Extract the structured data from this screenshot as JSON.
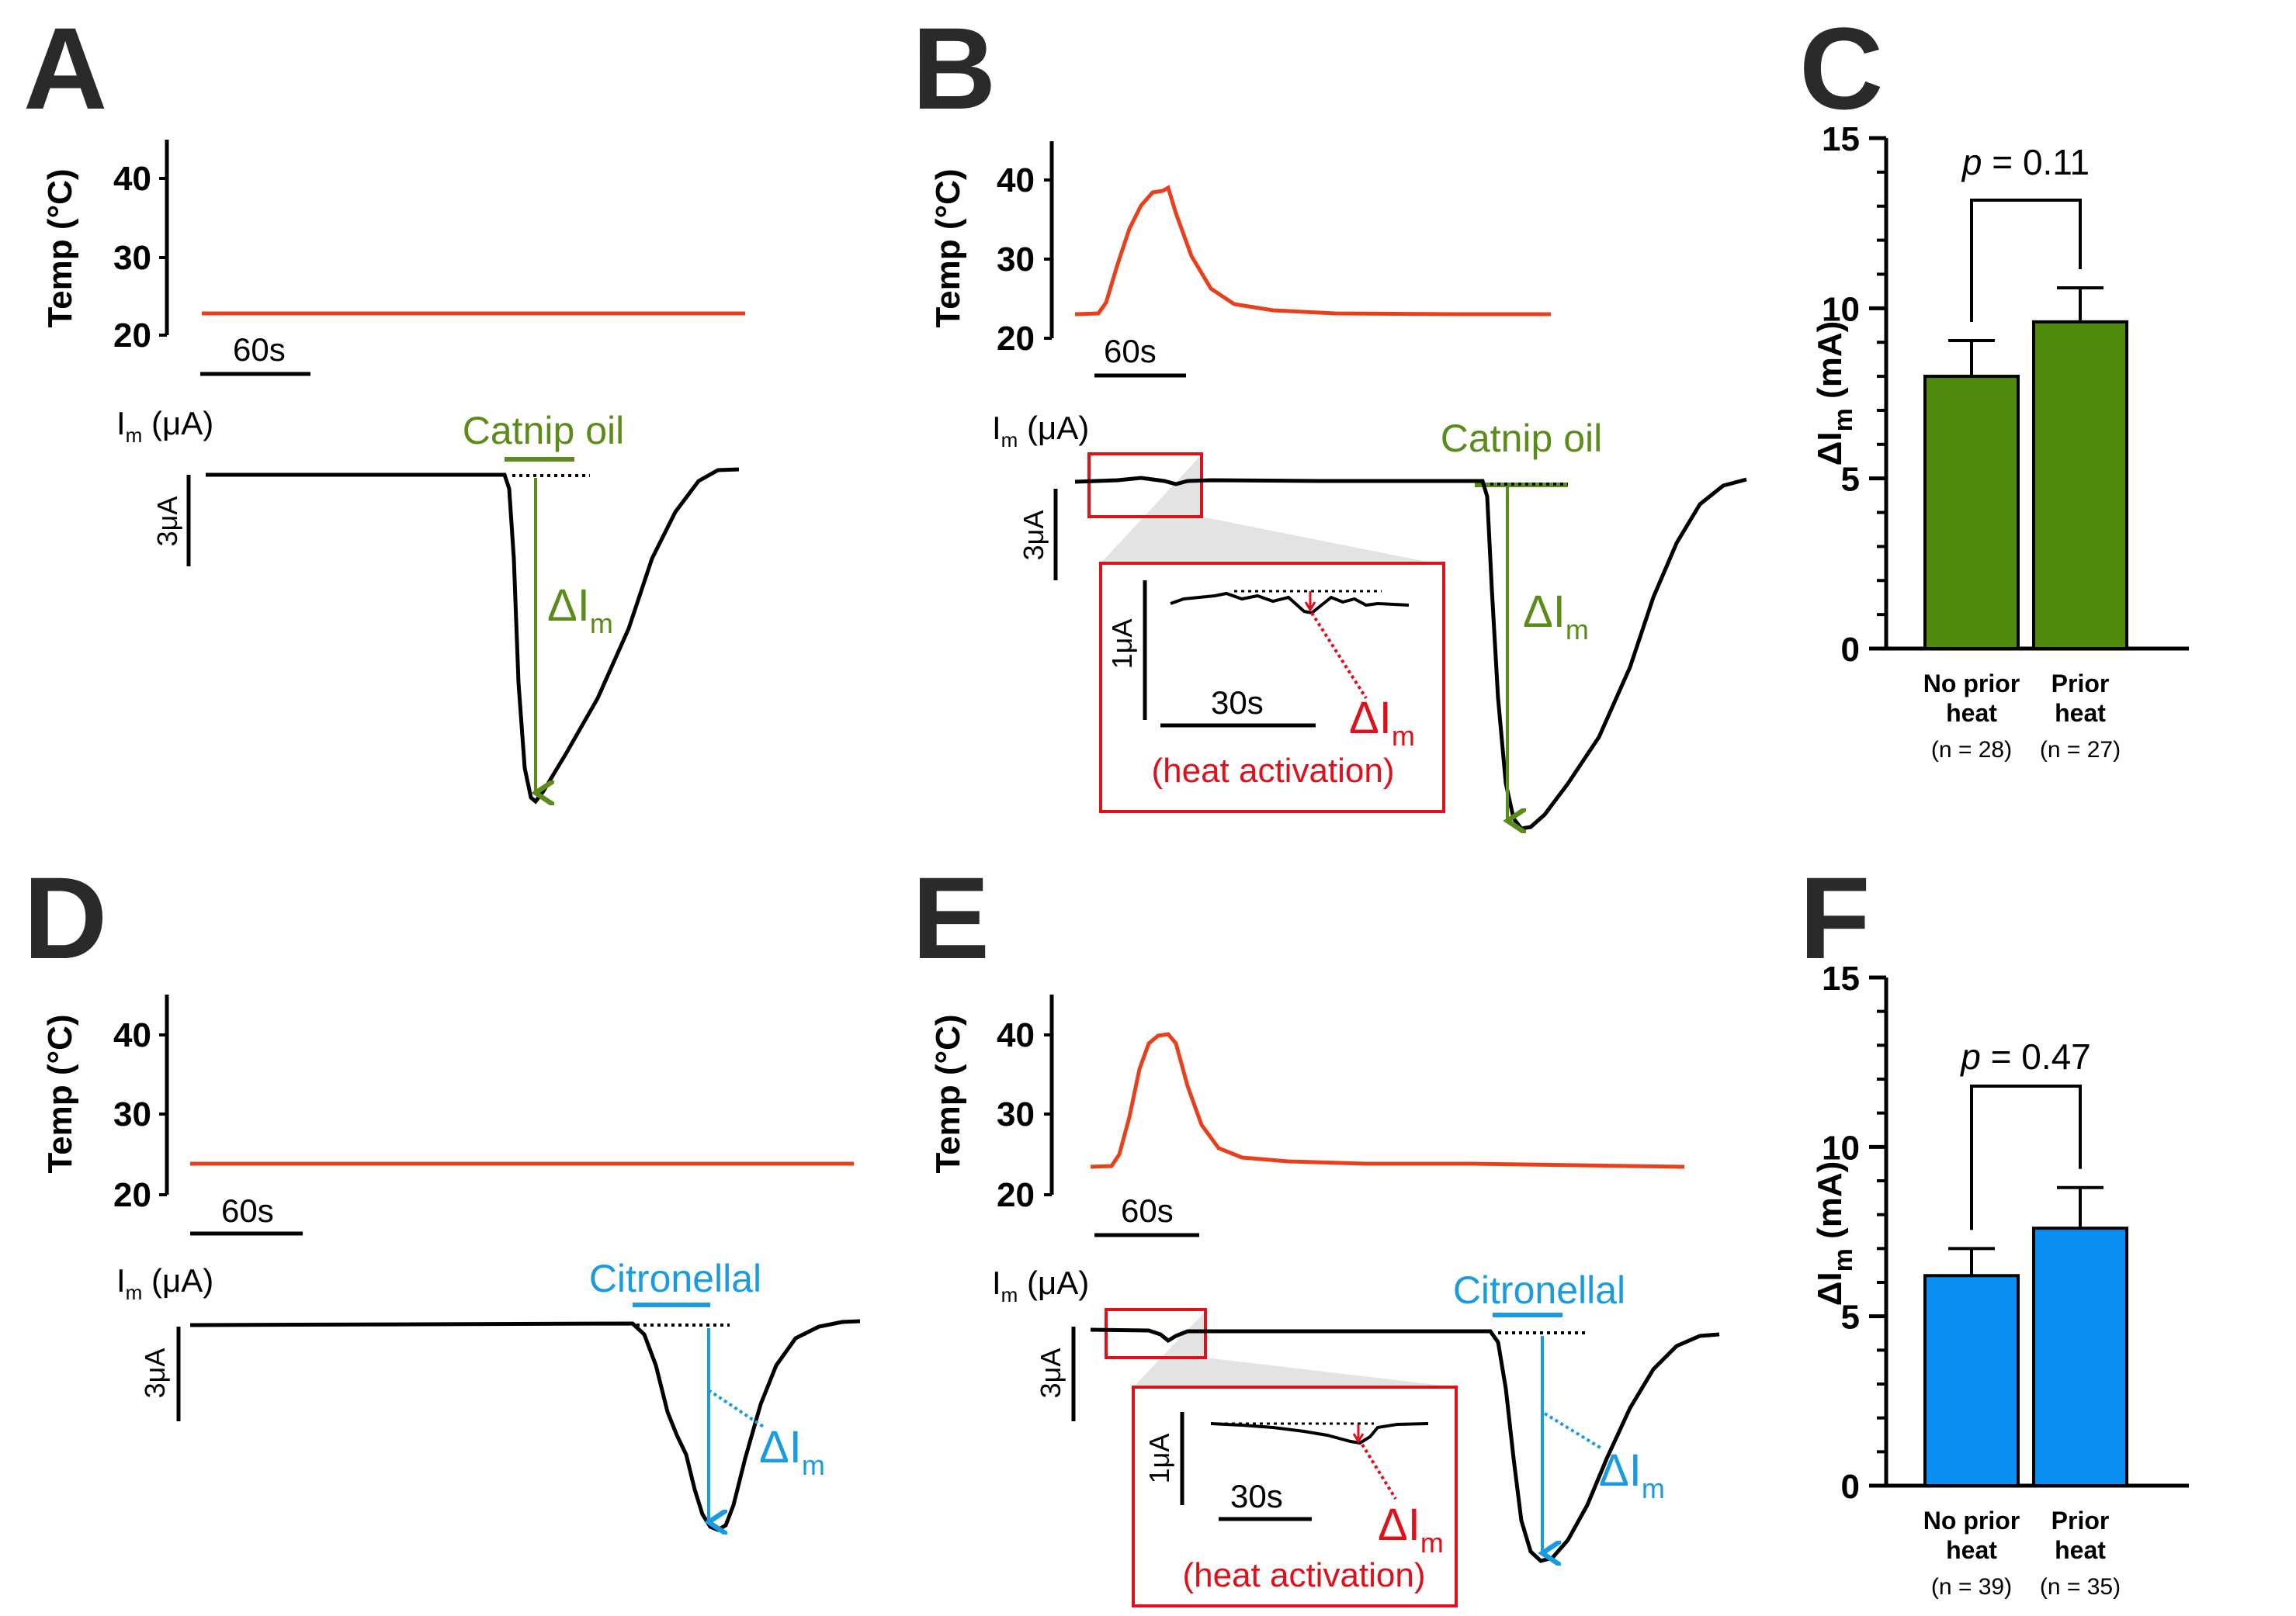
{
  "colors": {
    "temp": "#e8401c",
    "current": "#000000",
    "catnip": "#5b8c1a",
    "citronellal": "#1a9be0",
    "heat_activation": "#e0101a",
    "bar_catnip": "#4e8a0c",
    "bar_citronellal": "#0a8ff5"
  },
  "panels": {
    "A": {
      "letter": "A",
      "temp_ylabel": "Temp (°C)",
      "temp_ticks": [
        "40",
        "30",
        "20"
      ],
      "time_scale": "60s",
      "current_label_main": "I",
      "current_label_sub": "m",
      "current_label_tail": " (μA)",
      "current_scale": "3μA",
      "stimulus": "Catnip oil",
      "delta_main": "ΔI",
      "delta_sub": "m"
    },
    "B": {
      "letter": "B",
      "temp_ylabel": "Temp (°C)",
      "temp_ticks": [
        "40",
        "30",
        "20"
      ],
      "time_scale": "60s",
      "current_label_main": "I",
      "current_label_sub": "m",
      "current_label_tail": " (μA)",
      "current_scale": "3μA",
      "stimulus": "Catnip oil",
      "delta_main": "ΔI",
      "delta_sub": "m",
      "inset": {
        "scale_y": "1μA",
        "scale_x": "30s",
        "delta_main": "ΔI",
        "delta_sub": "m",
        "note": "(heat activation)"
      }
    },
    "D": {
      "letter": "D",
      "temp_ylabel": "Temp (°C)",
      "temp_ticks": [
        "40",
        "30",
        "20"
      ],
      "time_scale": "60s",
      "current_label_main": "I",
      "current_label_sub": "m",
      "current_label_tail": " (μA)",
      "current_scale": "3μA",
      "stimulus": "Citronellal",
      "delta_main": "ΔI",
      "delta_sub": "m"
    },
    "E": {
      "letter": "E",
      "temp_ylabel": "Temp (°C)",
      "temp_ticks": [
        "40",
        "30",
        "20"
      ],
      "time_scale": "60s",
      "current_label_main": "I",
      "current_label_sub": "m",
      "current_label_tail": " (μA)",
      "current_scale": "3μA",
      "stimulus": "Citronellal",
      "delta_main": "ΔI",
      "delta_sub": "m",
      "inset": {
        "scale_y": "1μA",
        "scale_x": "30s",
        "delta_main": "ΔI",
        "delta_sub": "m",
        "note": "(heat activation)"
      }
    }
  },
  "chart_data": [
    {
      "panel": "C",
      "type": "bar",
      "ylabel_main": "ΔI",
      "ylabel_sub": "m",
      "ylabel_tail": " (mA)",
      "ylim": [
        0,
        15
      ],
      "yticks": [
        "0",
        "5",
        "10",
        "15"
      ],
      "categories": [
        [
          "No prior",
          "heat",
          "(n = 28)"
        ],
        [
          "Prior",
          "heat",
          "(n = 27)"
        ]
      ],
      "values": [
        8.0,
        9.6
      ],
      "errors": [
        1.05,
        1.0
      ],
      "pvalue_italic": "p",
      "pvalue_rest": " = 0.11",
      "color": "#4e8a0c"
    },
    {
      "panel": "F",
      "type": "bar",
      "ylabel_main": "ΔI",
      "ylabel_sub": "m",
      "ylabel_tail": " (mA)",
      "ylim": [
        0,
        15
      ],
      "yticks": [
        "0",
        "5",
        "10",
        "15"
      ],
      "categories": [
        [
          "No prior",
          "heat",
          "(n = 39)"
        ],
        [
          "Prior",
          "heat",
          "(n = 35)"
        ]
      ],
      "values": [
        6.2,
        7.6
      ],
      "errors": [
        0.8,
        1.2
      ],
      "pvalue_italic": "p",
      "pvalue_rest": " = 0.47",
      "color": "#0a8ff5"
    }
  ]
}
